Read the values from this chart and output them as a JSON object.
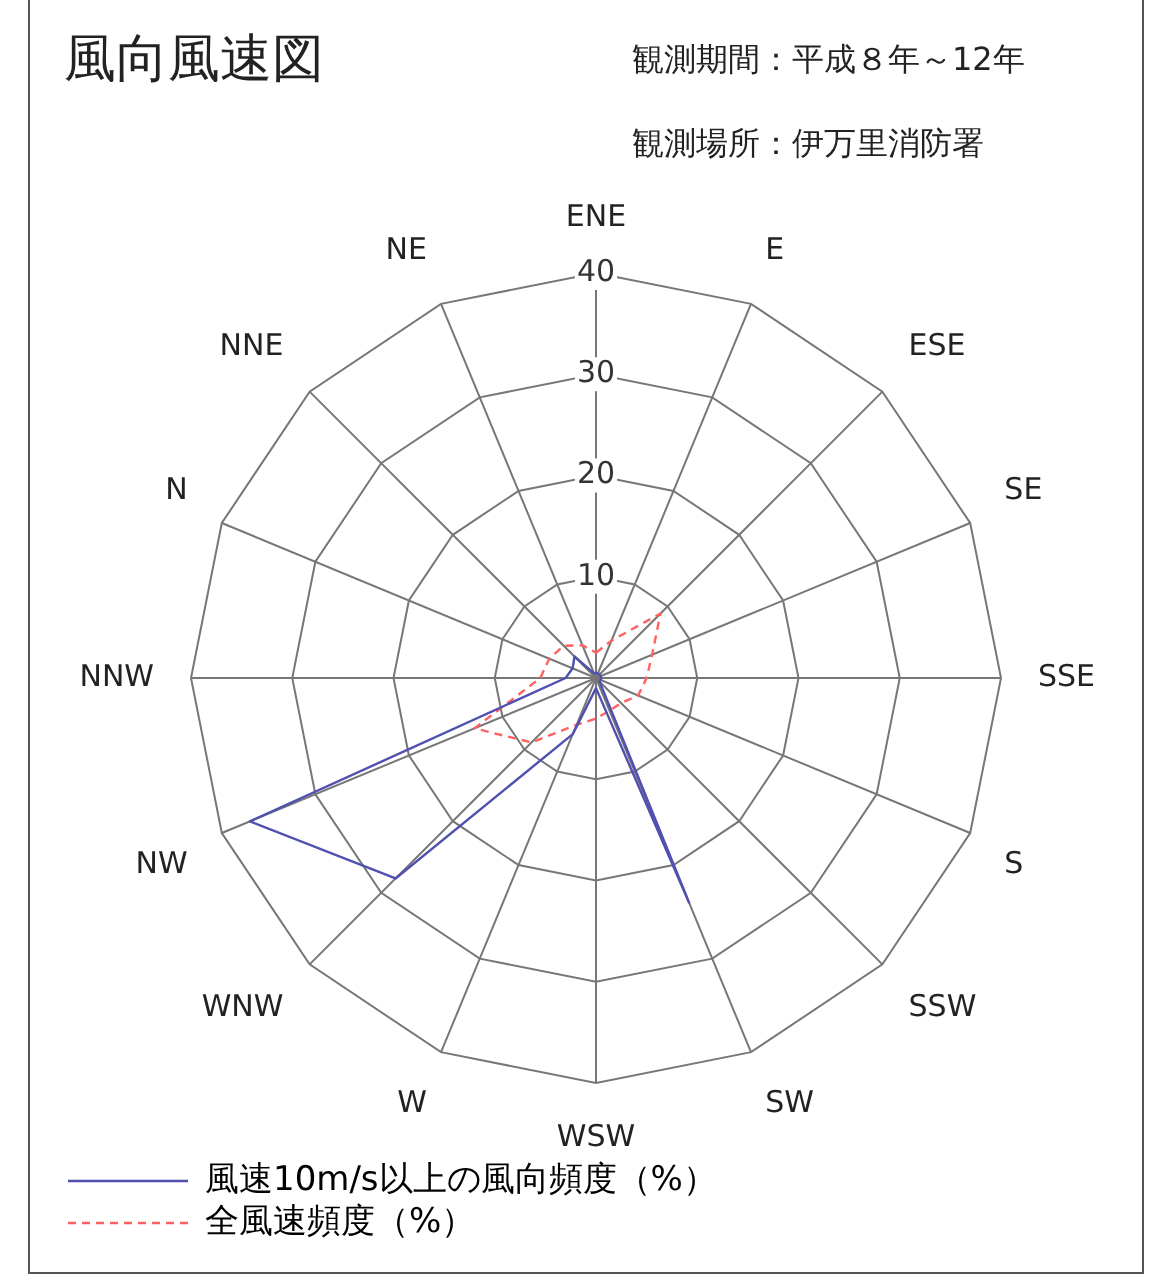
{
  "chart_data": {
    "type": "radar",
    "title": "風向風速図",
    "subtitle": "観測期間：平成８年～12年",
    "annotations": [
      "観測場所：伊万里消防署"
    ],
    "categories": [
      "ENE",
      "E",
      "ESE",
      "SE",
      "SSE",
      "S",
      "SSW",
      "SW",
      "WSW",
      "W",
      "WNW",
      "NW",
      "NNW",
      "N",
      "NNE",
      "NE"
    ],
    "series": [
      {
        "name": "風速10m/s以上の風向頻度（%）",
        "color": "#5050b0",
        "line_style": "solid",
        "values": [
          0.5,
          0.5,
          0.5,
          0.5,
          0.5,
          0.5,
          0.5,
          24,
          1,
          6,
          28,
          37,
          3,
          2.5,
          3,
          0.5
        ]
      },
      {
        "name": "全風速頻度（%）",
        "color": "#ff6060",
        "line_style": "dashed",
        "values": [
          2.5,
          4,
          9,
          6,
          5,
          4.5,
          3.5,
          3.5,
          4,
          5,
          9,
          13,
          5.5,
          5,
          4.5,
          3.5
        ]
      }
    ],
    "ylim": [
      0,
      40
    ],
    "yticks": [
      10,
      20,
      30,
      40
    ],
    "grid": true,
    "legend": "bottom",
    "marker": "none"
  }
}
